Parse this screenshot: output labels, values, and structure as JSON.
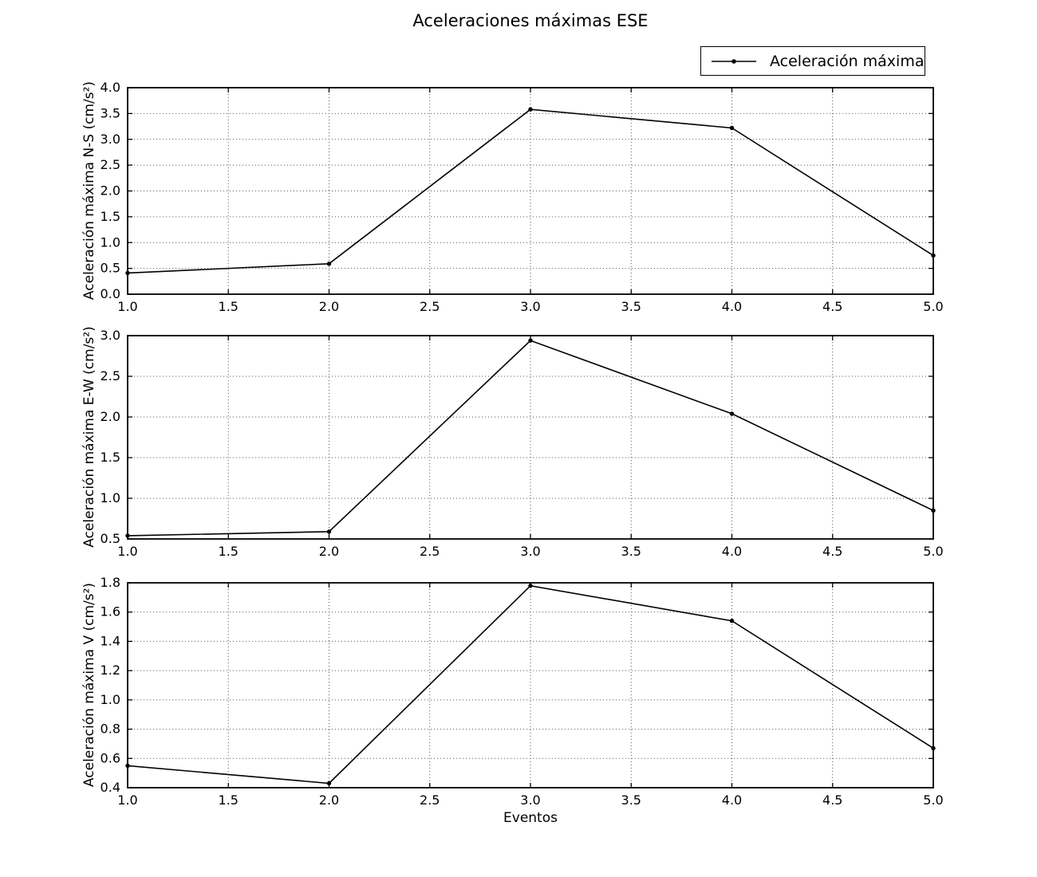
{
  "figure": {
    "title": "Aceleraciones máximas ESE",
    "xlabel": "Eventos",
    "legend_label": "Aceleración máxima",
    "line_color": "#000000",
    "background_color": "#ffffff",
    "grid_style": "dotted"
  },
  "chart_data": [
    {
      "type": "line",
      "ylabel": "Aceleración máxima N-S (cm/s²)",
      "x": [
        1.0,
        2.0,
        3.0,
        4.0,
        5.0
      ],
      "series": [
        {
          "name": "Aceleración máxima",
          "values": [
            0.41,
            0.59,
            3.58,
            3.22,
            0.75
          ]
        }
      ],
      "xlim": [
        1.0,
        5.0
      ],
      "ylim": [
        0.0,
        4.0
      ],
      "xtick_step": 0.5,
      "ytick_step": 0.5,
      "grid": true,
      "marker": "dot",
      "legend_position": "outside-upper-right"
    },
    {
      "type": "line",
      "ylabel": "Aceleración máxima E-W (cm/s²)",
      "x": [
        1.0,
        2.0,
        3.0,
        4.0,
        5.0
      ],
      "series": [
        {
          "name": "Aceleración máxima",
          "values": [
            0.54,
            0.59,
            2.94,
            2.04,
            0.85
          ]
        }
      ],
      "xlim": [
        1.0,
        5.0
      ],
      "ylim": [
        0.5,
        3.0
      ],
      "xtick_step": 0.5,
      "ytick_step": 0.5,
      "grid": true,
      "marker": "dot"
    },
    {
      "type": "line",
      "ylabel": "Aceleración máxima V (cm/s²)",
      "x": [
        1.0,
        2.0,
        3.0,
        4.0,
        5.0
      ],
      "series": [
        {
          "name": "Aceleración máxima",
          "values": [
            0.55,
            0.43,
            1.78,
            1.54,
            0.67
          ]
        }
      ],
      "xlim": [
        1.0,
        5.0
      ],
      "ylim": [
        0.4,
        1.8
      ],
      "xtick_step": 0.5,
      "ytick_step": 0.2,
      "grid": true,
      "marker": "dot"
    }
  ]
}
